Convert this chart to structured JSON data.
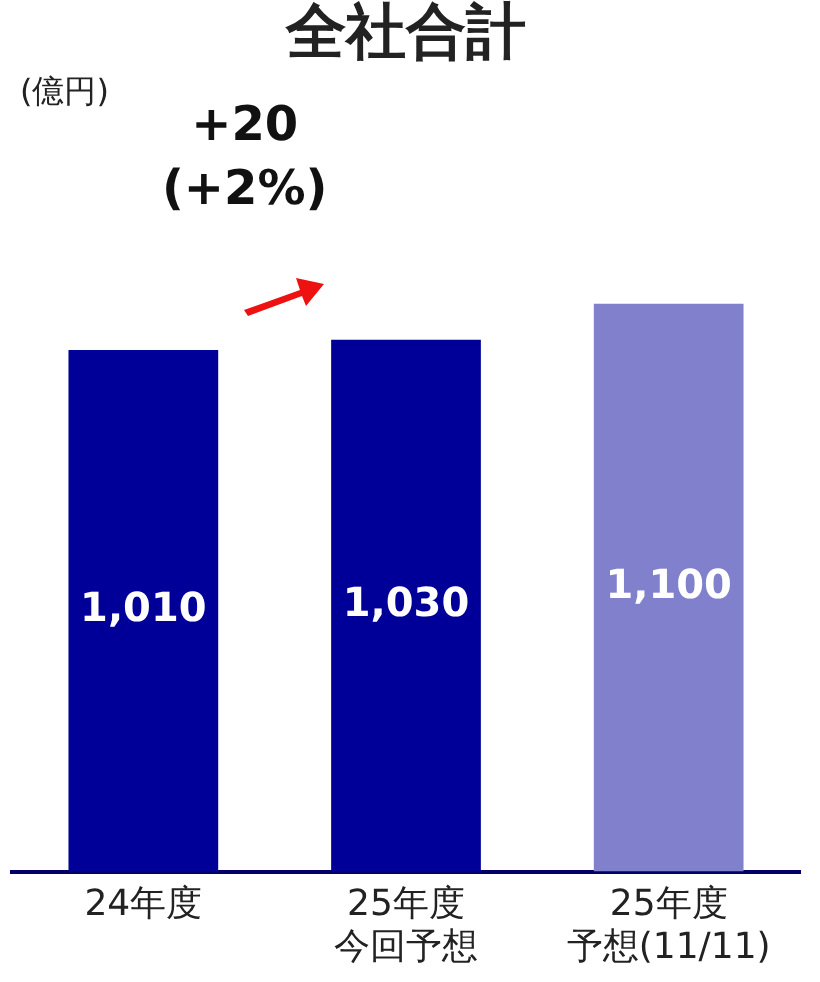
{
  "chart_data": {
    "type": "bar",
    "title": "全社合計",
    "categories": [
      "24年度",
      "25年度今回予想",
      "25年度予想(11/11)"
    ],
    "values": [
      1010,
      1030,
      1100
    ],
    "value_labels": [
      "1,010",
      "1,030",
      "1,100"
    ],
    "colors": [
      "#000099",
      "#000099",
      "#8080cc"
    ],
    "tick_labels": "x",
    "grid": false,
    "legend": false,
    "annotations": [
      "(億円)",
      "+20\n(+2%)"
    ]
  }
}
